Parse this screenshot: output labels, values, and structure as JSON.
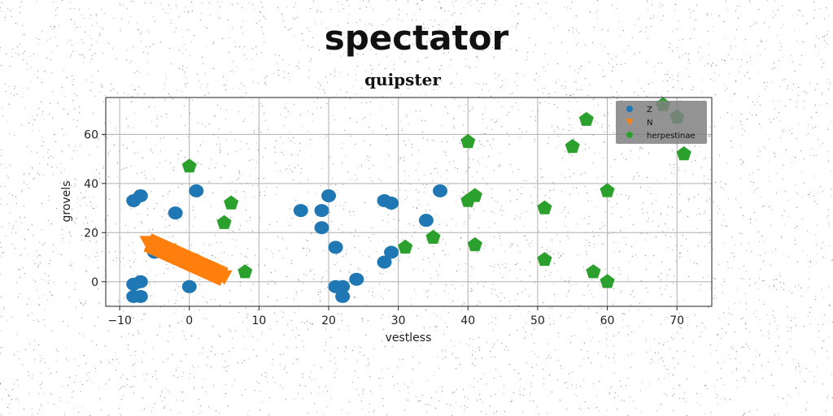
{
  "chart_data": {
    "type": "scatter",
    "title": "spectator",
    "subtitle": "quipster",
    "xlabel": "vestless",
    "ylabel": "grovels",
    "xlim": [
      -12,
      75
    ],
    "ylim": [
      -10,
      75
    ],
    "xticks": [
      -10,
      0,
      10,
      20,
      30,
      40,
      50,
      60,
      70
    ],
    "yticks": [
      0,
      20,
      40,
      60
    ],
    "grid": true,
    "legend_position": "top-right",
    "series": [
      {
        "name": "Z",
        "marker": "circle",
        "color": "#1f77b4",
        "points": [
          [
            -8,
            33
          ],
          [
            -7,
            35
          ],
          [
            1,
            37
          ],
          [
            -2,
            28
          ],
          [
            -5,
            12
          ],
          [
            -8,
            -1
          ],
          [
            -7,
            0
          ],
          [
            -8,
            -6
          ],
          [
            -7,
            -6
          ],
          [
            0,
            -2
          ],
          [
            16,
            29
          ],
          [
            19,
            29
          ],
          [
            20,
            35
          ],
          [
            19,
            22
          ],
          [
            21,
            14
          ],
          [
            28,
            33
          ],
          [
            29,
            32
          ],
          [
            29,
            12
          ],
          [
            28,
            8
          ],
          [
            34,
            25
          ],
          [
            36,
            37
          ],
          [
            24,
            1
          ],
          [
            22,
            -2
          ],
          [
            21,
            -2
          ],
          [
            22,
            -6
          ]
        ]
      },
      {
        "name": "N",
        "marker": "triangle",
        "color": "#ff7f0e",
        "points": [
          [
            -6,
            16
          ],
          [
            -3,
            13
          ],
          [
            0,
            9
          ],
          [
            3,
            5
          ],
          [
            5,
            2
          ]
        ]
      },
      {
        "name": "herpestinae",
        "marker": "pentagon",
        "color": "#2ca02c",
        "points": [
          [
            0,
            47
          ],
          [
            6,
            32
          ],
          [
            5,
            24
          ],
          [
            8,
            4
          ],
          [
            31,
            14
          ],
          [
            35,
            18
          ],
          [
            40,
            57
          ],
          [
            40,
            33
          ],
          [
            41,
            35
          ],
          [
            41,
            15
          ],
          [
            51,
            30
          ],
          [
            51,
            9
          ],
          [
            55,
            55
          ],
          [
            57,
            66
          ],
          [
            58,
            4
          ],
          [
            60,
            37
          ],
          [
            60,
            0
          ],
          [
            68,
            72
          ],
          [
            70,
            67
          ],
          [
            71,
            52
          ]
        ]
      }
    ]
  }
}
